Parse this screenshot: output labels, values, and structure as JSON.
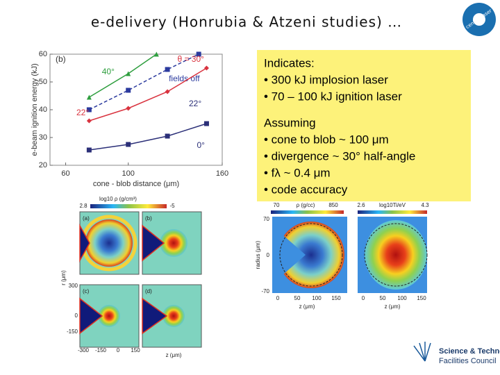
{
  "title": "e-delivery (Honrubia & Atzeni studies) …",
  "logo_top": "central laser facility",
  "logo_bottom": {
    "line1": "Science & Technology",
    "line2": "Facilities Council"
  },
  "textbox": {
    "lines": [
      "Indicates:",
      "• 300 kJ implosion laser",
      "• 70 – 100 kJ ignition laser",
      "Assuming",
      "• cone to blob ~ 100 μm",
      "• divergence ~ 30° half-angle",
      "• fλ ~ 0.4 μm",
      "• code accuracy"
    ]
  },
  "chart_data": {
    "type": "line",
    "xlabel": "cone - blob distance (μm)",
    "ylabel": "e-beam ignition energy (kJ)",
    "xlim": [
      50,
      160
    ],
    "xticks": [
      60,
      100,
      160
    ],
    "ylim": [
      20,
      60
    ],
    "yticks": [
      20,
      30,
      40,
      50,
      60
    ],
    "annotations": [
      "(b)",
      "22°",
      "22°"
    ],
    "series": [
      {
        "name": "40°",
        "color": "#2e9e3e",
        "marker": "triangle",
        "dashed": false,
        "x": [
          75,
          100,
          118
        ],
        "values": [
          44.5,
          53,
          60
        ]
      },
      {
        "name": "fields off",
        "color": "#2b3a9e",
        "marker": "square",
        "dashed": true,
        "x": [
          75,
          100,
          125,
          145
        ],
        "values": [
          40,
          47,
          54.5,
          60
        ]
      },
      {
        "name": "θ = 30°",
        "color": "#d9333f",
        "marker": "diamond",
        "dashed": false,
        "x": [
          75,
          100,
          125,
          150
        ],
        "values": [
          36,
          40.5,
          46.5,
          55
        ]
      },
      {
        "name": "0°",
        "color": "#2b2f78",
        "marker": "square",
        "dashed": false,
        "x": [
          75,
          100,
          125,
          150
        ],
        "values": [
          25.5,
          27.5,
          30.5,
          35
        ]
      }
    ]
  },
  "left_sim": {
    "colorbar_label": "log10 ρ (g/cm³)",
    "colorbar_min": "2.8",
    "colorbar_max": "-5",
    "panels": [
      "(a)",
      "(b)",
      "(c)",
      "(d)"
    ],
    "ylabel": "r (μm)",
    "xlabel": "z (μm)",
    "yticks": [
      "300",
      "0",
      "-150"
    ],
    "xticks": [
      "-300",
      "-150",
      "0",
      "150"
    ]
  },
  "right_sim": {
    "density_label": "ρ (g/cc)",
    "density_min": "70",
    "density_max": "850",
    "temp_label": "log10Ti/eV",
    "temp_min": "2.6",
    "temp_max": "4.3",
    "ylabel": "radius (μm)",
    "yticks": [
      "70",
      "0",
      "-70"
    ],
    "xticks": [
      "0",
      "50",
      "100",
      "150"
    ],
    "xlabel": "z (μm)"
  }
}
